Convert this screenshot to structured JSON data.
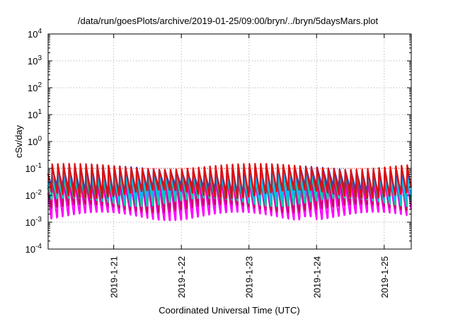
{
  "chart_data": {
    "type": "line",
    "title": "/data/run/goesPlots/archive/2019-01-25/09:00/bryn/../bryn/5daysMars.plot",
    "xlabel": "Coordinated Universal Time (UTC)",
    "ylabel": "cSv/day",
    "yscale": "log",
    "ylim": [
      0.0001,
      10000
    ],
    "ytick_exponents": [
      4,
      3,
      2,
      1,
      0,
      -1,
      -2,
      -3,
      -4
    ],
    "ytick_base": "10",
    "xlim_days": [
      20.03,
      25.4
    ],
    "xticks": [
      {
        "label": "2019-1-21",
        "day": 21
      },
      {
        "label": "2019-1-22",
        "day": 22
      },
      {
        "label": "2019-1-23",
        "day": 23
      },
      {
        "label": "2019-1-24",
        "day": 24
      },
      {
        "label": "2019-1-25",
        "day": 25
      }
    ],
    "grid": true,
    "reference_line": {
      "value": 0.1,
      "color": "#ff0000",
      "style": "dotted"
    },
    "cycles_per_day": 12,
    "series": [
      {
        "color": "#ff00ff",
        "peak": 0.03,
        "trough": 0.0018,
        "drop_day": 23.82,
        "drop_value": 0.0025
      },
      {
        "color": "#cc0066",
        "peak": 0.045,
        "trough": 0.0035,
        "drop_day": 23.82,
        "drop_value": 0.004
      },
      {
        "color": "#00ccaa",
        "peak": 0.055,
        "trough": 0.006
      },
      {
        "color": "#00bbff",
        "peak": 0.07,
        "trough": 0.01
      },
      {
        "color": "#1144ee",
        "peak": 0.1,
        "trough": 0.018
      },
      {
        "color": "#dd1111",
        "peak": 0.12,
        "trough": 0.012
      }
    ],
    "colors": {
      "grid": "#aaaaaa",
      "axis": "#000000"
    }
  }
}
